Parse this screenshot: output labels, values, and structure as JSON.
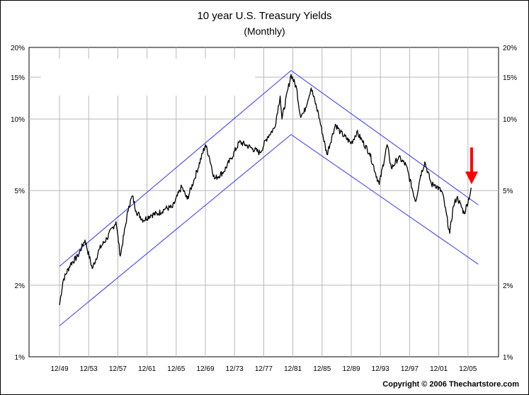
{
  "chart_data": {
    "type": "line",
    "title": "10 year U.S. Treasury Yields",
    "subtitle": "(Monthly)",
    "copyright": "Copyright © 2006 Thechartstore.com",
    "y_scale": "log",
    "ylim": [
      1,
      20
    ],
    "y_ticks": [
      {
        "value": 1,
        "label": "1%"
      },
      {
        "value": 2,
        "label": "2%"
      },
      {
        "value": 5,
        "label": "5%"
      },
      {
        "value": 10,
        "label": "10%"
      },
      {
        "value": 15,
        "label": "15%"
      },
      {
        "value": 20,
        "label": "20%"
      }
    ],
    "x_ticks": [
      "12/49",
      "12/53",
      "12/57",
      "12/61",
      "12/65",
      "12/69",
      "12/73",
      "12/77",
      "12/81",
      "12/85",
      "12/89",
      "12/93",
      "12/97",
      "12/01",
      "12/05"
    ],
    "grid": true,
    "series": [
      {
        "color": "#000000",
        "points": [
          [
            "1949-12",
            1.65
          ],
          [
            "1950-06",
            2.1
          ],
          [
            "1951-06",
            2.45
          ],
          [
            "1952-06",
            2.65
          ],
          [
            "1953-06",
            3.1
          ],
          [
            "1954-06",
            2.35
          ],
          [
            "1955-06",
            2.85
          ],
          [
            "1956-06",
            3.15
          ],
          [
            "1957-09",
            3.7
          ],
          [
            "1958-04",
            2.65
          ],
          [
            "1959-06",
            4.3
          ],
          [
            "1959-12",
            4.75
          ],
          [
            "1960-06",
            4.1
          ],
          [
            "1961-06",
            3.75
          ],
          [
            "1962-06",
            3.95
          ],
          [
            "1963-06",
            4.0
          ],
          [
            "1964-06",
            4.2
          ],
          [
            "1965-06",
            4.25
          ],
          [
            "1966-09",
            5.2
          ],
          [
            "1967-06",
            4.6
          ],
          [
            "1968-06",
            5.6
          ],
          [
            "1969-12",
            7.8
          ],
          [
            "1970-06",
            7.0
          ],
          [
            "1971-03",
            5.6
          ],
          [
            "1972-06",
            6.0
          ],
          [
            "1973-06",
            6.8
          ],
          [
            "1974-08",
            8.0
          ],
          [
            "1975-06",
            7.8
          ],
          [
            "1976-06",
            7.5
          ],
          [
            "1977-06",
            7.2
          ],
          [
            "1978-06",
            8.4
          ],
          [
            "1979-06",
            9.2
          ],
          [
            "1980-03",
            12.5
          ],
          [
            "1980-06",
            10.0
          ],
          [
            "1981-09",
            15.4
          ],
          [
            "1982-06",
            13.5
          ],
          [
            "1982-12",
            10.4
          ],
          [
            "1983-06",
            10.6
          ],
          [
            "1984-06",
            13.5
          ],
          [
            "1985-06",
            10.5
          ],
          [
            "1986-08",
            7.1
          ],
          [
            "1987-10",
            9.5
          ],
          [
            "1988-06",
            8.8
          ],
          [
            "1989-12",
            7.9
          ],
          [
            "1990-09",
            8.8
          ],
          [
            "1991-06",
            8.1
          ],
          [
            "1992-06",
            7.2
          ],
          [
            "1993-10",
            5.3
          ],
          [
            "1994-11",
            7.8
          ],
          [
            "1995-06",
            6.2
          ],
          [
            "1996-06",
            6.9
          ],
          [
            "1997-06",
            6.4
          ],
          [
            "1998-10",
            4.5
          ],
          [
            "1999-06",
            5.8
          ],
          [
            "2000-01",
            6.6
          ],
          [
            "2000-12",
            5.3
          ],
          [
            "2001-06",
            5.3
          ],
          [
            "2002-06",
            4.9
          ],
          [
            "2003-06",
            3.3
          ],
          [
            "2003-12",
            4.3
          ],
          [
            "2004-06",
            4.7
          ],
          [
            "2005-06",
            4.0
          ],
          [
            "2006-06",
            5.1
          ]
        ]
      }
    ],
    "channel_lines": {
      "color": "#3333ff",
      "upper": [
        [
          "1949-12",
          2.4
        ],
        [
          "1981-09",
          16.0
        ],
        [
          "2007-05",
          4.35
        ]
      ],
      "lower": [
        [
          "1949-12",
          1.35
        ],
        [
          "1981-09",
          8.6
        ],
        [
          "2007-05",
          2.45
        ]
      ]
    },
    "annotation": {
      "type": "arrow",
      "color": "#ff0000",
      "x": "2006-06",
      "y": 5.1
    }
  }
}
